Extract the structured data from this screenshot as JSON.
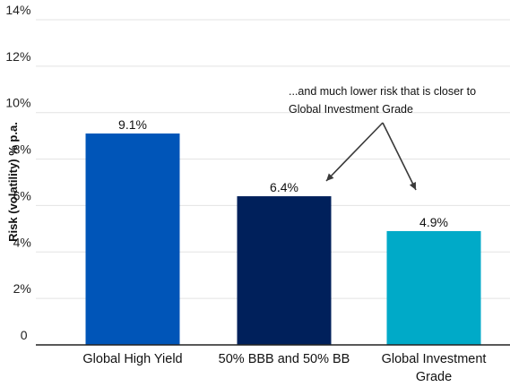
{
  "chart_data": {
    "type": "bar",
    "title": "",
    "xlabel": "",
    "ylabel": "Risk (volatility) % p.a.",
    "ylim": [
      0,
      14
    ],
    "y_ticks": [
      "0",
      "2%",
      "4%",
      "6%",
      "8%",
      "10%",
      "12%",
      "14%"
    ],
    "grid": true,
    "categories": [
      [
        "Global High Yield"
      ],
      [
        "50% BBB and 50% BB"
      ],
      [
        "Global Investment",
        "Grade"
      ]
    ],
    "values": [
      9.1,
      6.4,
      4.9
    ],
    "data_labels": [
      "9.1%",
      "6.4%",
      "4.9%"
    ],
    "colors": [
      "#0055b8",
      "#00205b",
      "#00aac8"
    ],
    "annotation": {
      "lines": [
        "...and much lower risk that is closer to",
        "Global Investment Grade"
      ],
      "arrow_targets": [
        1,
        2
      ]
    }
  }
}
